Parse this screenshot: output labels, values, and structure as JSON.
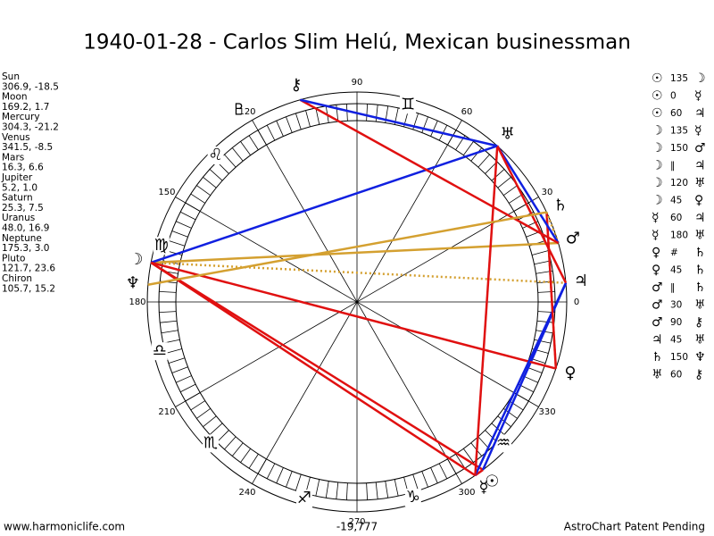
{
  "title": "1940-01-28 - Carlos Slim Helú, Mexican businessman",
  "planets": [
    {
      "name": "Sun",
      "glyph": "☉",
      "position": "306.9, -18.5"
    },
    {
      "name": "Moon",
      "glyph": "☽",
      "position": "169.2, 1.7"
    },
    {
      "name": "Mercury",
      "glyph": "☿",
      "position": "304.3, -21.2"
    },
    {
      "name": "Venus",
      "glyph": "♀",
      "position": "341.5, -8.5"
    },
    {
      "name": "Mars",
      "glyph": "♂",
      "position": "16.3, 6.6"
    },
    {
      "name": "Jupiter",
      "glyph": "♃",
      "position": "5.2, 1.0"
    },
    {
      "name": "Saturn",
      "glyph": "♄",
      "position": "25.3, 7.5"
    },
    {
      "name": "Uranus",
      "glyph": "♅",
      "position": "48.0, 16.9"
    },
    {
      "name": "Neptune",
      "glyph": "♆",
      "position": "175.3, 3.0"
    },
    {
      "name": "Pluto",
      "glyph": "♇",
      "position": "121.7, 23.6"
    },
    {
      "name": "Chiron",
      "glyph": "⚷",
      "position": "105.7, 15.2"
    }
  ],
  "aspects": [
    {
      "from": "☉",
      "aspect": "135",
      "to": "☽"
    },
    {
      "from": "☉",
      "aspect": "0",
      "to": "☿"
    },
    {
      "from": "☉",
      "aspect": "60",
      "to": "♃"
    },
    {
      "from": "☽",
      "aspect": "135",
      "to": "☿"
    },
    {
      "from": "☽",
      "aspect": "150",
      "to": "♂"
    },
    {
      "from": "☽",
      "aspect": "‖",
      "to": "♃"
    },
    {
      "from": "☽",
      "aspect": "120",
      "to": "♅"
    },
    {
      "from": "☽",
      "aspect": "45",
      "to": "♀"
    },
    {
      "from": "☿",
      "aspect": "60",
      "to": "♃"
    },
    {
      "from": "☿",
      "aspect": "180",
      "to": "♅"
    },
    {
      "from": "♀",
      "aspect": "#",
      "to": "♄"
    },
    {
      "from": "♀",
      "aspect": "45",
      "to": "♄"
    },
    {
      "from": "♂",
      "aspect": "‖",
      "to": "♄"
    },
    {
      "from": "♂",
      "aspect": "30",
      "to": "♅"
    },
    {
      "from": "♂",
      "aspect": "90",
      "to": "⚷"
    },
    {
      "from": "♃",
      "aspect": "45",
      "to": "♅"
    },
    {
      "from": "♄",
      "aspect": "150",
      "to": "♆"
    },
    {
      "from": "♅",
      "aspect": "60",
      "to": "⚷"
    }
  ],
  "degree_labels": [
    0,
    30,
    60,
    90,
    120,
    150,
    180,
    210,
    240,
    270,
    300,
    330
  ],
  "signs": [
    "♊",
    "♌",
    "♍",
    "♎",
    "♏",
    "♐",
    "♑",
    "♒"
  ],
  "footer": {
    "left": "www.harmoniclife.com",
    "center": "-19,777",
    "right": "AstroChart Patent Pending"
  }
}
